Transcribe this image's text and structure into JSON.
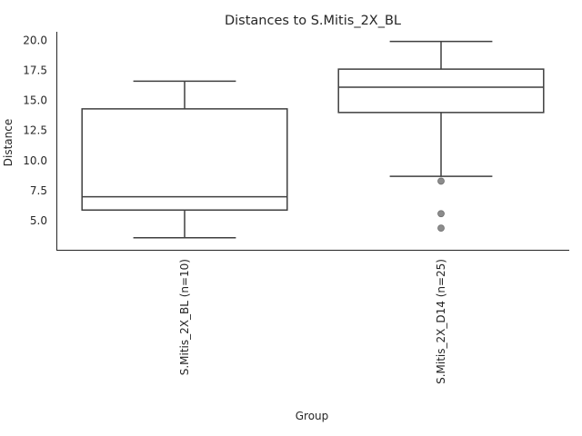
{
  "chart_data": {
    "type": "box",
    "title": "Distances to S.Mitis_2X_BL",
    "xlabel": "Group",
    "ylabel": "Distance",
    "ylim": [
      2.6,
      20.7
    ],
    "yticks": [
      5.0,
      7.5,
      10.0,
      12.5,
      15.0,
      17.5,
      20.0
    ],
    "ytick_labels": [
      "5.0",
      "7.5",
      "10.0",
      "12.5",
      "15.0",
      "17.5",
      "20.0"
    ],
    "grid": false,
    "colors": {
      "box_edge": "#3f3f3f",
      "box_fill": "#ffffff",
      "outlier": "#8c8c8c",
      "axis": "#262626"
    },
    "categories": [
      "S.Mitis_2X_BL (n=10)",
      "S.Mitis_2X_D14 (n=25)"
    ],
    "boxes": [
      {
        "category": "S.Mitis_2X_BL (n=10)",
        "whisker_low": 3.6,
        "q1": 5.9,
        "median": 7.0,
        "q3": 14.3,
        "whisker_high": 16.6,
        "outliers": []
      },
      {
        "category": "S.Mitis_2X_D14 (n=25)",
        "whisker_low": 8.7,
        "q1": 14.0,
        "median": 16.1,
        "q3": 17.6,
        "whisker_high": 19.9,
        "outliers": [
          8.3,
          5.6,
          4.4
        ]
      }
    ]
  }
}
